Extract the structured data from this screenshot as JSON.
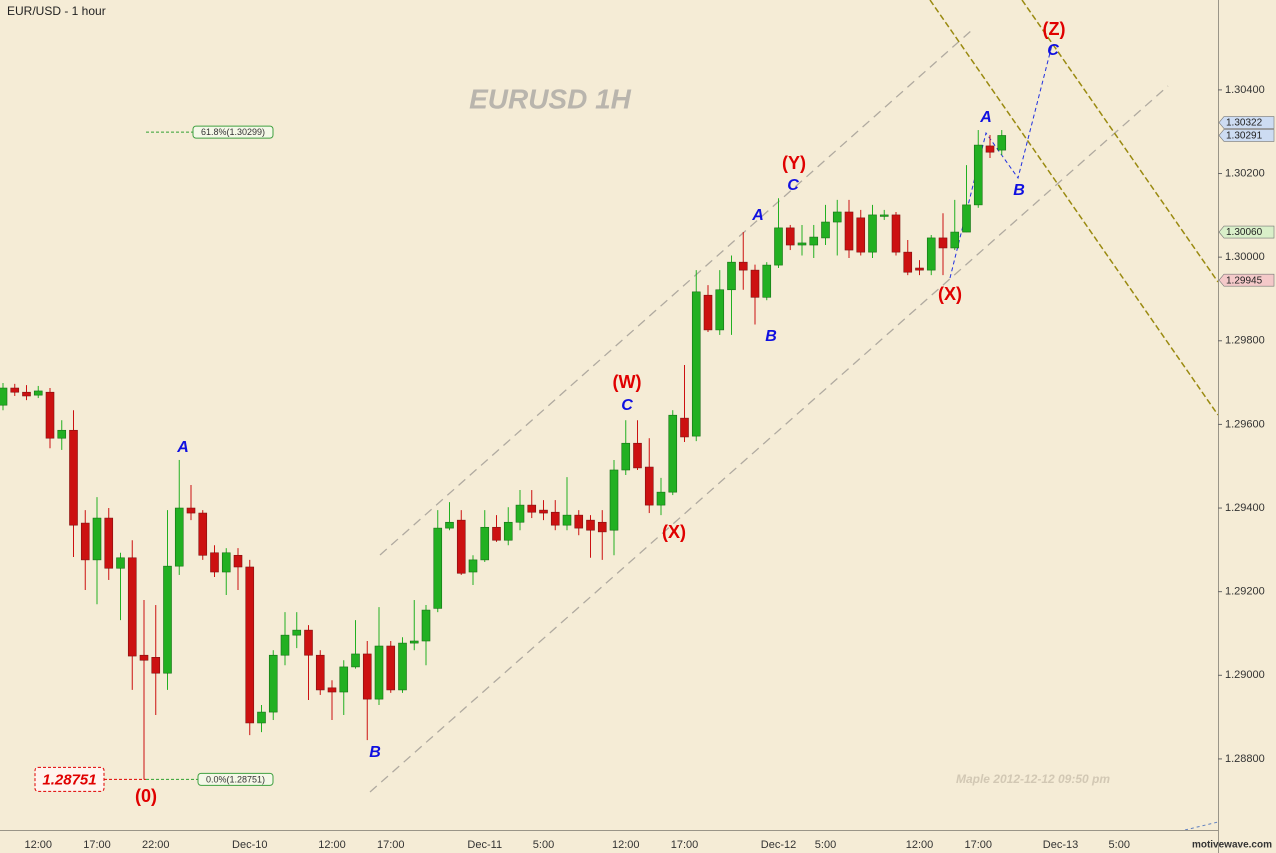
{
  "chart_data": {
    "type": "candlestick",
    "title": "EUR/USD - 1 hour",
    "watermark": "EURUSD 1H",
    "footnote": "Maple 2012-12-12 09:50 pm",
    "credit": "motivewave.com",
    "up_color": "#22b022",
    "down_color": "#cc1111",
    "categories": [
      null,
      null,
      null,
      "12:00",
      null,
      null,
      null,
      null,
      "17:00",
      null,
      null,
      null,
      null,
      "22:00",
      null,
      null,
      null,
      null,
      null,
      null,
      null,
      "Dec-10",
      null,
      null,
      null,
      null,
      null,
      null,
      "12:00",
      null,
      null,
      null,
      null,
      "17:00",
      null,
      null,
      null,
      null,
      null,
      null,
      null,
      "Dec-11",
      null,
      null,
      null,
      null,
      "5:00",
      null,
      null,
      null,
      null,
      null,
      null,
      "12:00",
      null,
      null,
      null,
      null,
      "17:00",
      null,
      null,
      null,
      null,
      null,
      null,
      null,
      "Dec-12",
      null,
      null,
      null,
      "5:00",
      null,
      null,
      null,
      null,
      null,
      null,
      null,
      "12:00",
      null,
      null,
      null,
      null,
      "17:00",
      null,
      null,
      null,
      null,
      null,
      null,
      "Dec-13",
      null,
      null,
      null,
      null,
      "5:00",
      null,
      null,
      null,
      null,
      null,
      null,
      null,
      null
    ],
    "open": [
      1.29646,
      1.29687,
      1.29677,
      1.2967,
      1.29677,
      1.29567,
      1.29586,
      1.29364,
      1.29276,
      1.29376,
      1.29256,
      1.29281,
      1.29048,
      1.29043,
      1.29005,
      1.29261,
      1.294,
      1.29388,
      1.29293,
      1.29247,
      1.29287,
      1.29259,
      1.28886,
      1.28912,
      1.29048,
      1.29096,
      1.29108,
      1.29048,
      1.2897,
      1.2896,
      1.2902,
      1.29051,
      1.28943,
      1.2907,
      1.28965,
      1.29077,
      1.29082,
      1.2916,
      1.29352,
      1.29371,
      1.29247,
      1.29276,
      1.29354,
      1.29323,
      1.29366,
      1.29407,
      1.29395,
      1.2939,
      1.29359,
      1.29383,
      1.29371,
      1.29366,
      1.29347,
      1.29491,
      1.29555,
      1.29498,
      1.29407,
      1.29438,
      1.29615,
      1.29572,
      1.29909,
      1.29826,
      1.29922,
      1.29988,
      1.29969,
      1.29904,
      1.29981,
      1.3007,
      1.30029,
      1.30029,
      1.30046,
      1.30084,
      1.30108,
      1.30094,
      1.30012,
      1.30098,
      1.30101,
      1.30012,
      1.29974,
      1.29969,
      1.30046,
      1.30022,
      1.3006,
      1.30125,
      1.30266,
      1.30256,
      null,
      null,
      null,
      null,
      null,
      null,
      null,
      null,
      null,
      null,
      null,
      null,
      null,
      null,
      null,
      null,
      null,
      null
    ],
    "high": [
      1.29699,
      1.29697,
      1.29694,
      1.29692,
      1.29687,
      1.2961,
      1.29634,
      1.29395,
      1.29426,
      1.294,
      1.29293,
      1.29323,
      1.2918,
      1.29168,
      1.29395,
      1.29515,
      1.29455,
      1.29395,
      1.29311,
      1.29304,
      1.29304,
      1.29276,
      1.28929,
      1.2906,
      1.29151,
      1.29151,
      1.2912,
      1.2906,
      1.28988,
      1.29036,
      1.29132,
      1.29082,
      1.29163,
      1.29082,
      1.29091,
      1.2918,
      1.29168,
      1.29395,
      1.29414,
      1.29395,
      1.29287,
      1.29395,
      1.29383,
      1.29402,
      1.29443,
      1.29443,
      1.29419,
      1.29419,
      1.29474,
      1.29395,
      1.29383,
      1.29395,
      1.29515,
      1.2961,
      1.2961,
      1.29567,
      1.29472,
      1.29634,
      1.29742,
      1.29969,
      1.29933,
      1.29969,
      1.30004,
      1.3006,
      1.29982,
      1.29988,
      1.30141,
      1.30077,
      1.30077,
      1.30077,
      1.30125,
      1.30137,
      1.30137,
      1.30113,
      1.30125,
      1.30113,
      1.30108,
      1.30041,
      1.29993,
      1.30053,
      1.30105,
      1.30137,
      1.3022,
      1.30304,
      1.30292,
      1.30304,
      null,
      null,
      null,
      null,
      null,
      null,
      null,
      null,
      null,
      null,
      null,
      null,
      null,
      null,
      null,
      null,
      null,
      null
    ],
    "low": [
      1.29634,
      1.29668,
      1.29658,
      1.29663,
      1.29543,
      1.29539,
      1.29283,
      1.29204,
      1.2917,
      1.29228,
      1.29132,
      1.28965,
      1.28751,
      1.28905,
      1.28965,
      1.2924,
      1.29371,
      1.29276,
      1.29235,
      1.29192,
      1.29204,
      1.28857,
      1.28864,
      1.28893,
      1.29024,
      1.29065,
      1.28941,
      1.28953,
      1.28893,
      1.28905,
      1.29016,
      1.28845,
      1.28929,
      1.28958,
      1.28958,
      1.2906,
      1.29024,
      1.29151,
      1.29347,
      1.2924,
      1.29216,
      1.29271,
      1.29319,
      1.29311,
      1.29347,
      1.29376,
      1.29371,
      1.29347,
      1.29347,
      1.29335,
      1.29281,
      1.29276,
      1.29287,
      1.29479,
      1.29491,
      1.29388,
      1.29383,
      1.29431,
      1.29558,
      1.2956,
      1.29821,
      1.29814,
      1.29814,
      1.29922,
      1.29839,
      1.29897,
      1.29974,
      1.30017,
      1.30004,
      1.29998,
      1.30029,
      1.30004,
      1.29998,
      1.30004,
      1.29998,
      1.30089,
      1.30004,
      1.29957,
      1.29957,
      1.29957,
      1.29957,
      1.30017,
      1.3006,
      1.30118,
      1.30237,
      1.30244,
      null,
      null,
      null,
      null,
      null,
      null,
      null,
      null,
      null,
      null,
      null,
      null,
      null,
      null,
      null,
      null,
      null,
      null
    ],
    "close": [
      1.29687,
      1.29677,
      1.29668,
      1.2968,
      1.29567,
      1.29586,
      1.29359,
      1.29276,
      1.29376,
      1.29256,
      1.29281,
      1.29046,
      1.29036,
      1.29005,
      1.29261,
      1.294,
      1.29388,
      1.29287,
      1.29247,
      1.29293,
      1.29259,
      1.28886,
      1.28912,
      1.29048,
      1.29096,
      1.29108,
      1.29048,
      1.28965,
      1.2896,
      1.2902,
      1.29051,
      1.28943,
      1.2907,
      1.28965,
      1.29077,
      1.29082,
      1.29156,
      1.29352,
      1.29366,
      1.29244,
      1.29276,
      1.29354,
      1.29323,
      1.29366,
      1.29407,
      1.2939,
      1.29388,
      1.29359,
      1.29383,
      1.29352,
      1.29347,
      1.29343,
      1.29491,
      1.29555,
      1.29496,
      1.29407,
      1.29438,
      1.29622,
      1.2957,
      1.29917,
      1.29826,
      1.29922,
      1.29988,
      1.29969,
      1.29904,
      1.29981,
      1.3007,
      1.30029,
      1.30034,
      1.30048,
      1.30084,
      1.30108,
      1.30017,
      1.30012,
      1.30101,
      1.30101,
      1.30012,
      1.29964,
      1.29969,
      1.30046,
      1.30022,
      1.3006,
      1.30125,
      1.30268,
      1.30251,
      1.30291,
      null,
      null,
      null,
      null,
      null,
      null,
      null,
      null,
      null,
      null,
      null,
      null,
      null,
      null,
      null,
      null,
      null,
      null
    ],
    "ylim": [
      1.2863,
      1.30615
    ],
    "yticks": [
      {
        "value": 1.288,
        "label": "1.28800"
      },
      {
        "value": 1.29,
        "label": "1.29000"
      },
      {
        "value": 1.292,
        "label": "1.29200"
      },
      {
        "value": 1.294,
        "label": "1.29400"
      },
      {
        "value": 1.296,
        "label": "1.29600"
      },
      {
        "value": 1.298,
        "label": "1.29800"
      },
      {
        "value": 1.3,
        "label": "1.30000"
      },
      {
        "value": 1.302,
        "label": "1.30200"
      },
      {
        "value": 1.304,
        "label": "1.30400"
      }
    ],
    "price_tags": [
      {
        "value": 1.30322,
        "label": "1.30322",
        "color": "#cddcf2"
      },
      {
        "value": 1.30291,
        "label": "1.30291",
        "color": "#cddcf2"
      },
      {
        "value": 1.3006,
        "label": "1.30060",
        "color": "#d9efc9"
      },
      {
        "value": 1.29945,
        "label": "1.29945",
        "color": "#f4c9c9"
      }
    ],
    "fib_levels": [
      {
        "value": 1.30299,
        "label": "61.8%(1.30299)"
      },
      {
        "value": 1.28751,
        "label": "0.0%(1.28751)"
      }
    ],
    "low_marker": {
      "value": 1.28751,
      "label": "1.28751"
    },
    "wave_labels": [
      {
        "text": "(0)",
        "color": "#e00000"
      },
      {
        "text": "A",
        "color": "#1010e0"
      },
      {
        "text": "B",
        "color": "#1010e0"
      },
      {
        "text": "(W)",
        "color": "#e00000"
      },
      {
        "text": "C",
        "color": "#1010e0"
      },
      {
        "text": "(X)",
        "color": "#e00000"
      },
      {
        "text": "A",
        "color": "#1010e0"
      },
      {
        "text": "C",
        "color": "#1010e0"
      },
      {
        "text": "(Y)",
        "color": "#e00000"
      },
      {
        "text": "B",
        "color": "#1010e0"
      },
      {
        "text": "(X)",
        "color": "#e00000"
      },
      {
        "text": "A",
        "color": "#1010e0"
      },
      {
        "text": "B",
        "color": "#1010e0"
      },
      {
        "text": "(Z)",
        "color": "#e00000"
      },
      {
        "text": "C",
        "color": "#1010e0"
      }
    ]
  }
}
